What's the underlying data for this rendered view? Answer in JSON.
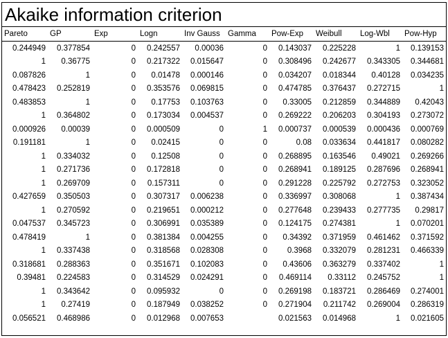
{
  "title": "Akaike information criterion",
  "table": {
    "columns": [
      "Pareto",
      "GP",
      "Exp",
      "Logn",
      "Inv Gauss",
      "Gamma",
      "Pow-Exp",
      "Weibull",
      "Log-Wbl",
      "Pow-Hyp"
    ],
    "rows": [
      [
        0.244949,
        0.377854,
        0,
        0.242557,
        0.00036,
        0,
        0.143037,
        0.225228,
        1,
        0.139153
      ],
      [
        1,
        0.36775,
        0,
        0.217322,
        0.015647,
        0,
        0.308496,
        0.242677,
        0.343305,
        0.344681
      ],
      [
        0.087826,
        1,
        0,
        0.01478,
        0.000146,
        0,
        0.034207,
        0.018344,
        0.40128,
        0.034235
      ],
      [
        0.478423,
        0.252819,
        0,
        0.353576,
        0.069815,
        0,
        0.474785,
        0.376437,
        0.272715,
        1
      ],
      [
        0.483853,
        1,
        0,
        0.17753,
        0.103763,
        0,
        0.33005,
        0.212859,
        0.344889,
        0.42043
      ],
      [
        1,
        0.364802,
        0,
        0.173034,
        0.004537,
        0,
        0.269222,
        0.206203,
        0.304193,
        0.273072
      ],
      [
        0.000926,
        0.00039,
        0,
        0.000509,
        0,
        1,
        0.000737,
        0.000539,
        0.000436,
        0.000769
      ],
      [
        0.191181,
        1,
        0,
        0.02415,
        0,
        0,
        0.08,
        0.033634,
        0.441817,
        0.080282
      ],
      [
        1,
        0.334032,
        0,
        0.12508,
        0,
        0,
        0.268895,
        0.163546,
        0.49021,
        0.269266
      ],
      [
        1,
        0.271736,
        0,
        0.172818,
        0,
        0,
        0.268941,
        0.189125,
        0.287696,
        0.268941
      ],
      [
        1,
        0.269709,
        0,
        0.157311,
        0,
        0,
        0.291228,
        0.225792,
        0.272753,
        0.323052
      ],
      [
        0.427659,
        0.350503,
        0,
        0.307317,
        0.006238,
        0,
        0.336997,
        0.308068,
        1,
        0.387434
      ],
      [
        1,
        0.270592,
        0,
        0.219651,
        0.000212,
        0,
        0.277648,
        0.239433,
        0.277735,
        0.29817
      ],
      [
        0.047537,
        0.345723,
        0,
        0.306991,
        0.035389,
        0,
        0.124175,
        0.274381,
        1,
        0.070201
      ],
      [
        0.478419,
        1,
        0,
        0.381384,
        0.004255,
        0,
        0.34392,
        0.371959,
        0.461462,
        0.371592
      ],
      [
        1,
        0.337438,
        0,
        0.318568,
        0.028308,
        0,
        0.3968,
        0.332079,
        0.281231,
        0.466339
      ],
      [
        0.318681,
        0.288363,
        0,
        0.351671,
        0.102083,
        0,
        0.43606,
        0.363279,
        0.337402,
        1
      ],
      [
        0.39481,
        0.224583,
        0,
        0.314529,
        0.024291,
        0,
        0.469114,
        0.33112,
        0.245752,
        1
      ],
      [
        1,
        0.343642,
        0,
        0.095932,
        0,
        0,
        0.269198,
        0.183721,
        0.286469,
        0.274001
      ],
      [
        1,
        0.27419,
        0,
        0.187949,
        0.038252,
        0,
        0.271904,
        0.211742,
        0.269004,
        0.286319
      ],
      [
        0.056521,
        0.468986,
        0,
        0.012968,
        0.007653,
        null,
        0.021563,
        0.014968,
        1,
        0.021605
      ]
    ]
  }
}
